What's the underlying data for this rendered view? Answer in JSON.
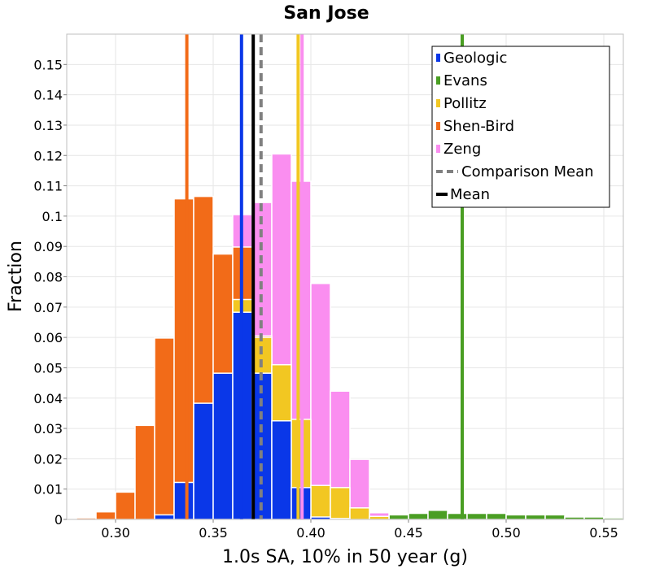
{
  "chart_data": {
    "type": "histogram",
    "title": "San Jose",
    "xlabel": "1.0s SA, 10% in 50 year (g)",
    "ylabel": "Fraction",
    "xlim": [
      0.275,
      0.56
    ],
    "ylim": [
      0,
      0.16
    ],
    "bin_width": 0.01,
    "x_ticks": [
      {
        "v": 0.3,
        "label": "0.30"
      },
      {
        "v": 0.35,
        "label": "0.35"
      },
      {
        "v": 0.4,
        "label": "0.40"
      },
      {
        "v": 0.45,
        "label": "0.45"
      },
      {
        "v": 0.5,
        "label": "0.50"
      },
      {
        "v": 0.55,
        "label": "0.55"
      }
    ],
    "y_ticks": [
      {
        "v": 0,
        "label": "0"
      },
      {
        "v": 0.01,
        "label": "0.01"
      },
      {
        "v": 0.02,
        "label": "0.02"
      },
      {
        "v": 0.03,
        "label": "0.03"
      },
      {
        "v": 0.04,
        "label": "0.04"
      },
      {
        "v": 0.05,
        "label": "0.05"
      },
      {
        "v": 0.06,
        "label": "0.06"
      },
      {
        "v": 0.07,
        "label": "0.07"
      },
      {
        "v": 0.08,
        "label": "0.08"
      },
      {
        "v": 0.09,
        "label": "0.09"
      },
      {
        "v": 0.1,
        "label": "0.1"
      },
      {
        "v": 0.11,
        "label": "0.11"
      },
      {
        "v": 0.12,
        "label": "0.12"
      },
      {
        "v": 0.13,
        "label": "0.13"
      },
      {
        "v": 0.14,
        "label": "0.14"
      },
      {
        "v": 0.15,
        "label": "0.15"
      }
    ],
    "series": [
      {
        "name": "Evans",
        "color": "#4a9e23",
        "bins": [
          {
            "x": 0.425,
            "y": 0.001
          },
          {
            "x": 0.435,
            "y": 0.0015
          },
          {
            "x": 0.445,
            "y": 0.0015
          },
          {
            "x": 0.455,
            "y": 0.002
          },
          {
            "x": 0.465,
            "y": 0.003
          },
          {
            "x": 0.475,
            "y": 0.002
          },
          {
            "x": 0.485,
            "y": 0.002
          },
          {
            "x": 0.495,
            "y": 0.002
          },
          {
            "x": 0.505,
            "y": 0.0015
          },
          {
            "x": 0.515,
            "y": 0.0015
          },
          {
            "x": 0.525,
            "y": 0.0015
          },
          {
            "x": 0.535,
            "y": 0.0008
          },
          {
            "x": 0.545,
            "y": 0.0008
          },
          {
            "x": 0.555,
            "y": 0.0005
          }
        ]
      },
      {
        "name": "Zeng",
        "color": "#fa8ef0",
        "bins": [
          {
            "x": 0.365,
            "y": 0.1005
          },
          {
            "x": 0.375,
            "y": 0.1045
          },
          {
            "x": 0.385,
            "y": 0.1205
          },
          {
            "x": 0.395,
            "y": 0.1115
          },
          {
            "x": 0.405,
            "y": 0.0778
          },
          {
            "x": 0.415,
            "y": 0.0423
          },
          {
            "x": 0.425,
            "y": 0.0198
          },
          {
            "x": 0.435,
            "y": 0.0022
          }
        ]
      },
      {
        "name": "Shen-Bird",
        "color": "#f26b18",
        "bins": [
          {
            "x": 0.285,
            "y": 0.0005
          },
          {
            "x": 0.295,
            "y": 0.0025
          },
          {
            "x": 0.305,
            "y": 0.009
          },
          {
            "x": 0.315,
            "y": 0.031
          },
          {
            "x": 0.325,
            "y": 0.0598
          },
          {
            "x": 0.335,
            "y": 0.1057
          },
          {
            "x": 0.345,
            "y": 0.1065
          },
          {
            "x": 0.355,
            "y": 0.0875
          },
          {
            "x": 0.365,
            "y": 0.0898
          },
          {
            "x": 0.375,
            "y": 0.0605
          }
        ]
      },
      {
        "name": "Pollitz",
        "color": "#f2c722",
        "bins": [
          {
            "x": 0.365,
            "y": 0.0725
          },
          {
            "x": 0.375,
            "y": 0.06
          },
          {
            "x": 0.385,
            "y": 0.051
          },
          {
            "x": 0.395,
            "y": 0.033
          },
          {
            "x": 0.405,
            "y": 0.0112
          },
          {
            "x": 0.415,
            "y": 0.0105
          },
          {
            "x": 0.425,
            "y": 0.0038
          },
          {
            "x": 0.435,
            "y": 0.001
          }
        ]
      },
      {
        "name": "Geologic",
        "color": "#0a37e8",
        "bins": [
          {
            "x": 0.325,
            "y": 0.0015
          },
          {
            "x": 0.335,
            "y": 0.0122
          },
          {
            "x": 0.345,
            "y": 0.0383
          },
          {
            "x": 0.355,
            "y": 0.0482
          },
          {
            "x": 0.365,
            "y": 0.0683
          },
          {
            "x": 0.375,
            "y": 0.0482
          },
          {
            "x": 0.385,
            "y": 0.0325
          },
          {
            "x": 0.395,
            "y": 0.0105
          },
          {
            "x": 0.405,
            "y": 0.0008
          },
          {
            "x": 0.415,
            "y": 0.0003
          }
        ]
      }
    ],
    "vlines": [
      {
        "name": "Shen-Bird mean",
        "x": 0.3365,
        "color": "#f26b18",
        "dash": false,
        "width": 4
      },
      {
        "name": "Geologic mean",
        "x": 0.3645,
        "color": "#0a37e8",
        "dash": false,
        "width": 4
      },
      {
        "name": "Pollitz mean",
        "x": 0.3935,
        "color": "#f2c722",
        "dash": false,
        "width": 4
      },
      {
        "name": "Zeng mean",
        "x": 0.3955,
        "color": "#fa8ef0",
        "dash": false,
        "width": 4
      },
      {
        "name": "Evans mean",
        "x": 0.4775,
        "color": "#4a9e23",
        "dash": false,
        "width": 4
      },
      {
        "name": "Comparison Mean",
        "x": 0.3745,
        "color": "#808080",
        "dash": true,
        "width": 4
      },
      {
        "name": "Mean",
        "x": 0.3705,
        "color": "#000000",
        "dash": false,
        "width": 4
      }
    ],
    "legend": {
      "placement": "top-right",
      "entries": [
        {
          "label": "Geologic",
          "color": "#0a37e8",
          "style": "box"
        },
        {
          "label": "Evans",
          "color": "#4a9e23",
          "style": "box"
        },
        {
          "label": "Pollitz",
          "color": "#f2c722",
          "style": "box"
        },
        {
          "label": "Shen-Bird",
          "color": "#f26b18",
          "style": "box"
        },
        {
          "label": "Zeng",
          "color": "#fa8ef0",
          "style": "box"
        },
        {
          "label": "Comparison Mean",
          "color": "#808080",
          "style": "dash"
        },
        {
          "label": "Mean",
          "color": "#000000",
          "style": "line"
        }
      ]
    },
    "grid": true
  }
}
